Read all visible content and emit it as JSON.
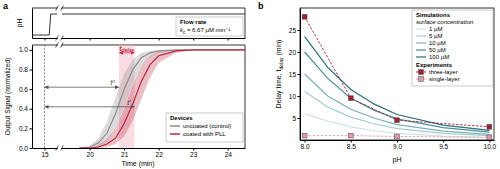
{
  "chart_data": [
    {
      "type": "line",
      "panel_label": "a",
      "y_label": "pH",
      "xlim": [
        [
          14.6,
          15.4
        ],
        [
          19.2,
          24.5
        ]
      ],
      "xticks": [
        15,
        20,
        21,
        22,
        23,
        24
      ],
      "ylim": [
        2,
        12
      ],
      "tick_labels": false,
      "x": [
        14.6,
        15.15,
        15.2,
        24.5
      ],
      "values": [
        3,
        3,
        10,
        10
      ],
      "color": "#333333",
      "legend_title": "Flow rate",
      "legend_text": "k",
      "legend_sub": "c",
      "legend_rest": " = 6.67 µM min⁻¹"
    },
    {
      "type": "line",
      "y_label": "Output Signal (normalized)",
      "x_label": "Time (min)",
      "xlim": [
        [
          14.6,
          15.4
        ],
        [
          19.2,
          24.5
        ]
      ],
      "xticks": [
        15,
        20,
        21,
        22,
        23,
        24
      ],
      "ylim": [
        0,
        1.05
      ],
      "yticks": [
        {
          "value": 0,
          "label": "0.0"
        },
        {
          "value": 0.2,
          "label": "0.2"
        },
        {
          "value": 0.4,
          "label": "0.4"
        },
        {
          "value": 0.6,
          "label": "0.6"
        },
        {
          "value": 0.8,
          "label": "0.8"
        },
        {
          "value": 1,
          "label": "1.0"
        }
      ],
      "x": [
        19.7,
        20.0,
        20.25,
        20.5,
        20.75,
        21.0,
        21.25,
        21.5,
        21.75,
        22.0,
        22.5,
        23.0,
        24.5
      ],
      "series": [
        {
          "name": "uncoated (control)",
          "color": "#8c8c8c",
          "values": [
            0,
            0.01,
            0.05,
            0.15,
            0.35,
            0.6,
            0.8,
            0.92,
            0.97,
            0.99,
            1,
            1,
            1
          ],
          "lower": [
            0,
            0,
            0.02,
            0.07,
            0.2,
            0.42,
            0.65,
            0.84,
            0.93,
            0.97,
            1,
            1,
            1
          ],
          "upper": [
            0,
            0.02,
            0.1,
            0.27,
            0.52,
            0.76,
            0.9,
            0.97,
            0.99,
            1,
            1,
            1,
            1
          ]
        },
        {
          "name": "coated with PLL",
          "color": "#b5283f",
          "values": [
            0,
            0,
            0.01,
            0.04,
            0.1,
            0.25,
            0.45,
            0.68,
            0.85,
            0.94,
            0.99,
            1,
            1
          ],
          "lower": [
            0,
            0,
            0,
            0.01,
            0.04,
            0.12,
            0.28,
            0.5,
            0.72,
            0.87,
            0.97,
            1,
            1
          ],
          "upper": [
            0,
            0,
            0.03,
            0.09,
            0.2,
            0.4,
            0.64,
            0.84,
            0.94,
            0.98,
            1,
            1,
            1
          ]
        }
      ],
      "legend_title": "Devices",
      "annotations": [
        {
          "text": "t⁰",
          "x": [
            15,
            20.85
          ],
          "y": 0.62
        },
        {
          "text": "t′",
          "x": [
            15,
            21.3
          ],
          "y": 0.42
        },
        {
          "text": "t",
          "sub": "delay",
          "x": [
            20.85,
            21.3
          ],
          "y": 0.97
        }
      ]
    },
    {
      "type": "line",
      "panel_label": "b",
      "x_label": "pH",
      "y_label": "Delay time, t",
      "y_label_sub": "delay",
      "y_label_rest": " (min)",
      "xlim": [
        7.95,
        10.05
      ],
      "xticks": [
        {
          "value": 8,
          "label": "8.0"
        },
        8.5,
        {
          "value": 9,
          "label": "9.0"
        },
        9.5,
        {
          "value": 10,
          "label": "10.0"
        }
      ],
      "ylim": [
        0,
        30
      ],
      "yticks": [
        5,
        10,
        15,
        20,
        25
      ],
      "groups": [
        {
          "title": "Simulations",
          "subtitle": "surface concentration",
          "x": [
            8.0,
            8.25,
            8.5,
            8.75,
            9.0,
            9.5,
            10.0
          ],
          "series": [
            {
              "name": "1 µM",
              "color": "#cfe3e6",
              "values": [
                6,
                4.3,
                3,
                2.1,
                1.5,
                0.9,
                0.6
              ]
            },
            {
              "name": "5 µM",
              "color": "#a6cad0",
              "values": [
                11,
                7.5,
                5.2,
                3.7,
                2.6,
                1.5,
                1.0
              ]
            },
            {
              "name": "10 µM",
              "color": "#7cafb8",
              "values": [
                15,
                10,
                7,
                5,
                3.5,
                2,
                1.3
              ]
            },
            {
              "name": "50 µM",
              "color": "#4d8e99",
              "values": [
                20,
                14,
                9.5,
                6.8,
                4.8,
                2.8,
                1.8
              ]
            },
            {
              "name": "100 µM",
              "color": "#2a6e7a",
              "values": [
                23.5,
                16.5,
                11.5,
                8.2,
                5.8,
                3.4,
                2.2
              ]
            }
          ]
        },
        {
          "title": "Experiments",
          "x": [
            8.0,
            8.5,
            9.0,
            10.0
          ],
          "series": [
            {
              "name": "three-layer",
              "color": "#9b2335",
              "marker": "square",
              "line_style": "dashed",
              "values": [
                28,
                9.5,
                4.5,
                3
              ]
            },
            {
              "name": "single-layer",
              "color": "#e39aac",
              "marker": "square",
              "line_style": "dashed",
              "values": [
                1,
                1,
                0.8,
                0.6
              ]
            }
          ]
        }
      ]
    }
  ]
}
